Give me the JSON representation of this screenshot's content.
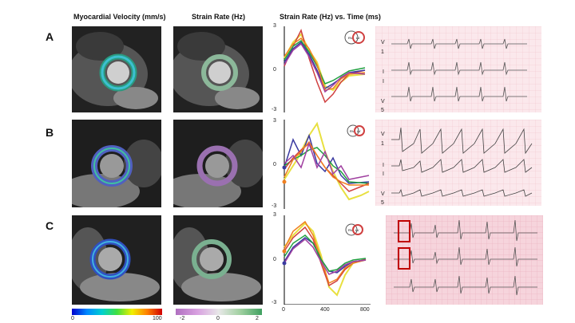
{
  "headers": {
    "velocity": "Myocardial Velocity (mm/s)",
    "strain": "Strain Rate (Hz)",
    "strain_time": "Strain Rate (Hz) vs. Time (ms)"
  },
  "rows": [
    {
      "label": "A",
      "y_ticks": [
        "3",
        "0",
        "-3"
      ],
      "leads": [
        "V",
        "1",
        "I",
        "I",
        "V",
        "5"
      ]
    },
    {
      "label": "B",
      "y_ticks": [
        "3",
        "0",
        "-3"
      ],
      "leads": [
        "V",
        "1",
        "I",
        "I",
        "V",
        "5"
      ]
    },
    {
      "label": "C",
      "y_ticks": [
        "3",
        "0",
        "-3"
      ],
      "x_ticks": [
        "0",
        "400",
        "800"
      ]
    }
  ],
  "ring_labels": {
    "rv": "RV",
    "lv": "LV"
  },
  "scales": {
    "velocity": {
      "min": "0",
      "max": "100"
    },
    "strain": {
      "min": "-2",
      "mid": "0",
      "max": "2"
    }
  },
  "colors": {
    "velocity_scale": [
      "#0000cc",
      "#0088ff",
      "#00d0d0",
      "#40e040",
      "#f0f000",
      "#ff8000",
      "#d00000"
    ],
    "strain_scale": [
      "#b070c0",
      "#d8a0e0",
      "#e8e8e8",
      "#a0d0a0",
      "#40a060"
    ],
    "ecg_bg": "#fbe8ec",
    "highlight": "#c00000"
  }
}
